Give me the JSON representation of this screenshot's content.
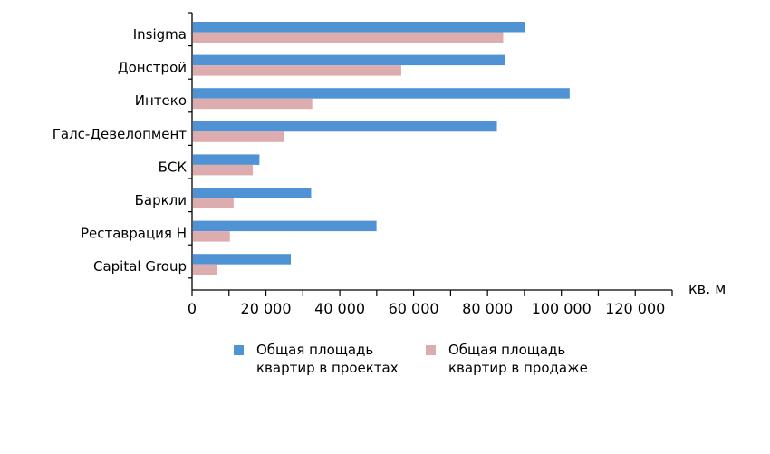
{
  "chart_data": {
    "type": "bar",
    "orientation": "horizontal",
    "categories": [
      "Insigma",
      "Донстрой",
      "Интеко",
      "Галс-Девелопмент",
      "БСК",
      "Баркли",
      "Реставрация Н",
      "Capital Group"
    ],
    "series": [
      {
        "name": "Общая площадь квартир в проектах",
        "color": "#4f93d4",
        "values": [
          90000,
          84500,
          102000,
          82300,
          18000,
          32000,
          49700,
          26500
        ]
      },
      {
        "name": "Общая площадь квартир в продаже",
        "color": "#dcacae",
        "values": [
          84000,
          56400,
          32300,
          24600,
          16200,
          11000,
          10000,
          6500
        ]
      }
    ],
    "x_ticks": [
      "0",
      "20 000",
      "40 000",
      "60 000",
      "80 000",
      "100 000",
      "120 000"
    ],
    "xlim": [
      0,
      130000
    ],
    "xlabel": "кв. м",
    "grid": false,
    "legend_position": "bottom"
  }
}
